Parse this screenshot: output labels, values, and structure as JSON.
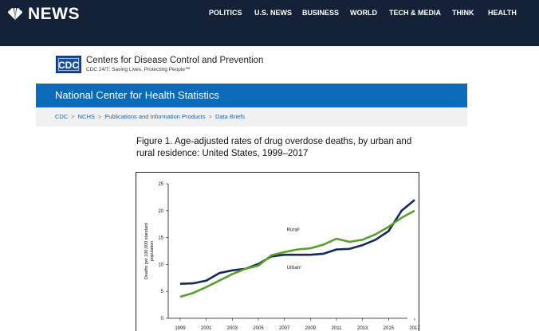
{
  "site": {
    "brand": "NEWS"
  },
  "nav": [
    "POLITICS",
    "U.S. NEWS",
    "BUSINESS",
    "WORLD",
    "TECH & MEDIA",
    "THINK",
    "HEALTH"
  ],
  "cdc": {
    "logo": "CDC",
    "name": "Centers for Disease Control and Prevention",
    "tagline": "CDC 24/7: Saving Lives, Protecting People™"
  },
  "nchs": {
    "title": "National Center for Health Statistics"
  },
  "breadcrumb": [
    "CDC",
    "NCHS",
    "Publications and Information Products",
    "Data Briefs"
  ],
  "figure": {
    "title": "Figure 1. Age-adjusted rates of drug overdose deaths, by urban and rural residence: United States, 1999–2017"
  },
  "colors": {
    "nav_bg": "#142237",
    "nchs_blue": "#0c6bb8",
    "urban": "#142a5c",
    "rural": "#5a9e2c"
  },
  "chart_data": {
    "type": "line",
    "ylabel_lines": [
      "Deaths per 100,000 standard",
      "population"
    ],
    "ylim": [
      0,
      25
    ],
    "yticks": [
      0,
      5,
      10,
      15,
      20,
      25
    ],
    "xlim": [
      1999,
      2017
    ],
    "xticks": [
      1999,
      2001,
      2003,
      2005,
      2007,
      2009,
      2011,
      2013,
      2015,
      2017
    ],
    "grid": false,
    "x": [
      1999,
      2000,
      2001,
      2002,
      2003,
      2004,
      2005,
      2006,
      2007,
      2008,
      2009,
      2010,
      2011,
      2012,
      2013,
      2014,
      2015,
      2016,
      2017
    ],
    "series": [
      {
        "name": "Urban¹",
        "color": "#142a5c",
        "values": [
          6.4,
          6.5,
          7.0,
          8.4,
          8.9,
          9.2,
          10.1,
          11.5,
          11.8,
          11.8,
          11.8,
          12.0,
          12.8,
          12.9,
          13.6,
          14.6,
          16.2,
          20.0,
          22.0
        ]
      },
      {
        "name": "Rural¹",
        "color": "#5a9e2c",
        "values": [
          4.0,
          4.7,
          5.8,
          7.0,
          8.2,
          9.2,
          9.8,
          11.7,
          12.3,
          12.8,
          13.0,
          13.7,
          14.8,
          14.2,
          14.6,
          15.6,
          17.0,
          18.7,
          20.0
        ]
      }
    ]
  }
}
